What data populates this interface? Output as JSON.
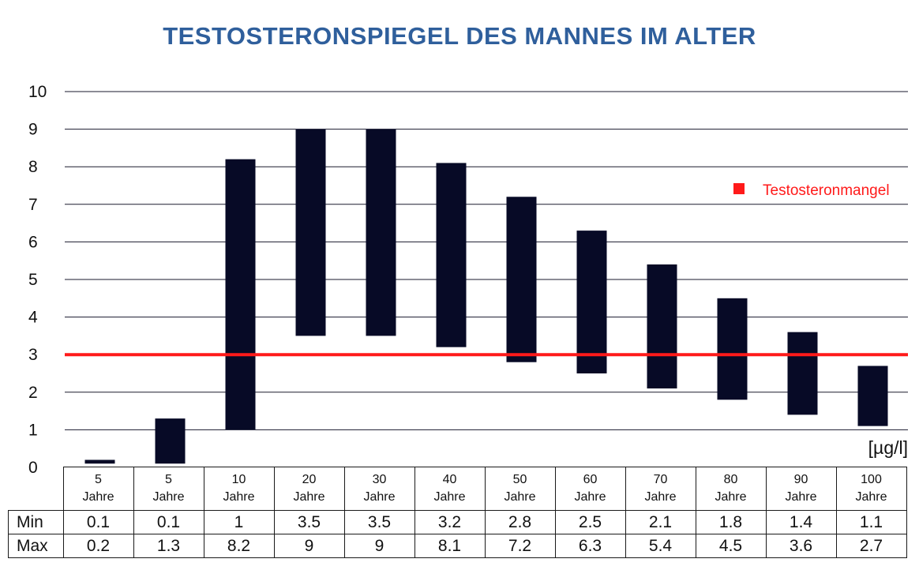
{
  "chart_data": {
    "type": "bar",
    "title": "TESTOSTERONSPIEGEL DES MANNES IM ALTER",
    "unit": "[µg/l]",
    "categories": [
      [
        "5",
        "Jahre"
      ],
      [
        "5",
        "Jahre"
      ],
      [
        "10",
        "Jahre"
      ],
      [
        "20",
        "Jahre"
      ],
      [
        "30",
        "Jahre"
      ],
      [
        "40",
        "Jahre"
      ],
      [
        "50",
        "Jahre"
      ],
      [
        "60",
        "Jahre"
      ],
      [
        "70",
        "Jahre"
      ],
      [
        "80",
        "Jahre"
      ],
      [
        "90",
        "Jahre"
      ],
      [
        "100",
        "Jahre"
      ]
    ],
    "min": [
      0.1,
      0.1,
      1,
      3.5,
      3.5,
      3.2,
      2.8,
      2.5,
      2.1,
      1.8,
      1.4,
      1.1
    ],
    "max": [
      0.2,
      1.3,
      8.2,
      9,
      9,
      8.1,
      7.2,
      6.3,
      5.4,
      4.5,
      3.6,
      2.7
    ],
    "min_display": [
      "0.1",
      "0.1",
      "1",
      "3.5",
      "3.5",
      "3.2",
      "2.8",
      "2.5",
      "2.1",
      "1.8",
      "1.4",
      "1.1"
    ],
    "max_display": [
      "0.2",
      "1.3",
      "8.2",
      "9",
      "9",
      "8.1",
      "7.2",
      "6.3",
      "5.4",
      "4.5",
      "3.6",
      "2.7"
    ],
    "row_labels": {
      "min": "Min",
      "max": "Max"
    },
    "ylim": [
      0,
      10
    ],
    "yticks": [
      "0",
      "1",
      "2",
      "3",
      "4",
      "5",
      "6",
      "7",
      "8",
      "9",
      "10"
    ],
    "grid": true,
    "threshold": {
      "value": 3,
      "label": "Testosteronmangel",
      "color": "#ff1a1a"
    },
    "legend_position": "top-right",
    "colors": {
      "bar": "#070a26",
      "title": "#2f5f9c",
      "threshold": "#ff1a1a"
    }
  }
}
